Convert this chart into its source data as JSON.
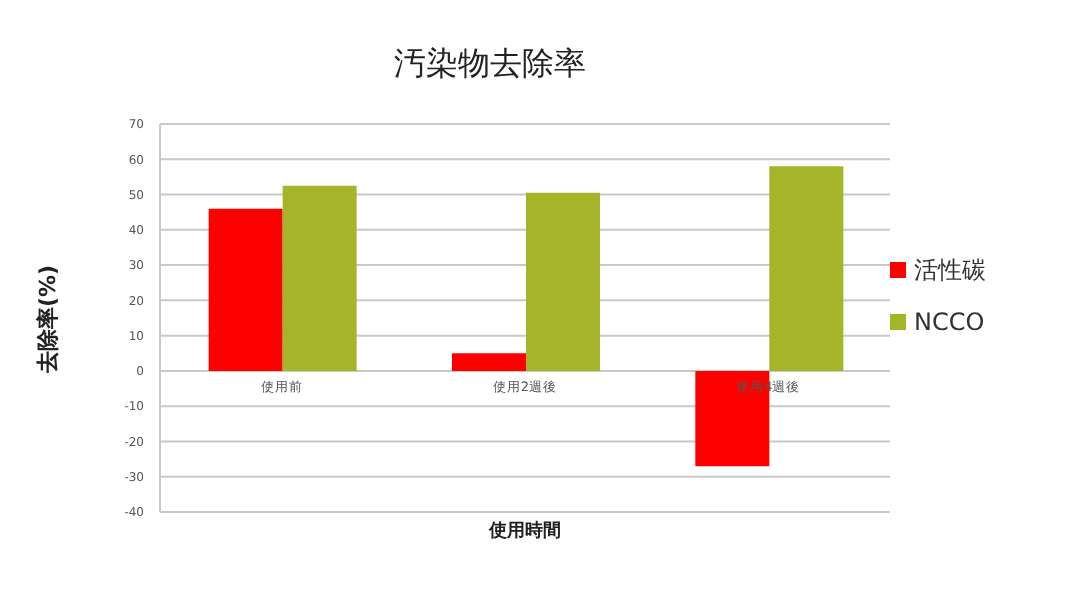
{
  "chart_data": {
    "type": "bar",
    "title": "汚染物去除率",
    "xlabel": "使用時間",
    "ylabel": "去除率(%)",
    "categories": [
      "使用前",
      "使用2週後",
      "使用4週後"
    ],
    "series": [
      {
        "name": "活性碳",
        "color": "#ff0000",
        "values": [
          46,
          5,
          -27
        ]
      },
      {
        "name": "NCCO",
        "color": "#a5b52a",
        "values": [
          52.5,
          50.5,
          58
        ]
      }
    ],
    "ylim": [
      -40,
      70
    ],
    "yticks": [
      -40,
      -30,
      -20,
      -10,
      0,
      10,
      20,
      30,
      40,
      50,
      60,
      70
    ],
    "grid": "y",
    "legend": "right"
  }
}
